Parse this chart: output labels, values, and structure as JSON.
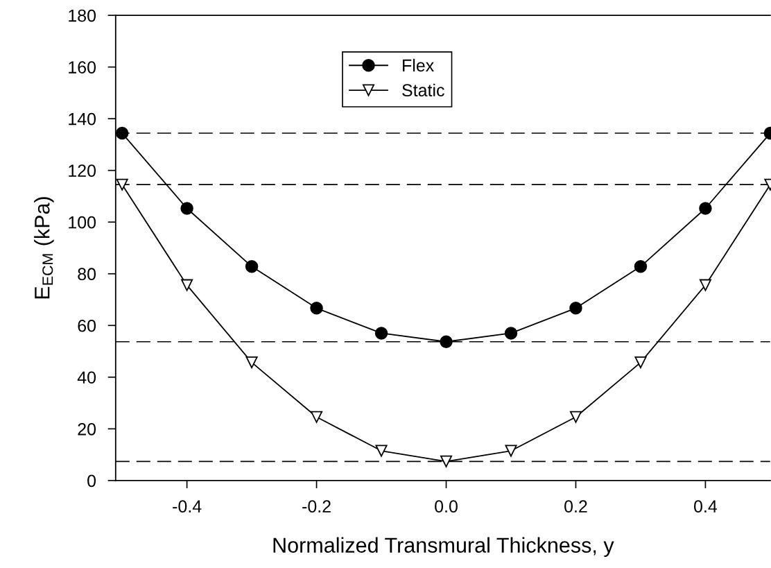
{
  "chart_data": {
    "type": "line",
    "xlabel": "Normalized Transmural Thickness, y",
    "ylabel": "E$_{ECM}$ (kPa)",
    "x": [
      -0.5,
      -0.4,
      -0.3,
      -0.2,
      -0.1,
      0.0,
      0.1,
      0.2,
      0.3,
      0.4,
      0.5
    ],
    "series": [
      {
        "name": "Flex",
        "color": "#000000",
        "marker": "circle",
        "values": [
          134.4,
          105.3,
          82.8,
          66.7,
          57.0,
          53.7,
          57.0,
          66.7,
          82.8,
          105.3,
          134.4
        ]
      },
      {
        "name": "Static",
        "color": "#000000",
        "marker": "triangle",
        "values": [
          114.5,
          75.6,
          45.7,
          24.6,
          11.5,
          7.4,
          11.5,
          24.6,
          45.7,
          75.6,
          114.5
        ]
      }
    ],
    "ref_lines": [
      {
        "axis": "y",
        "value": 134.4,
        "line_style": "dashed",
        "color": "#000000"
      },
      {
        "axis": "y",
        "value": 114.5,
        "line_style": "dashed",
        "color": "#000000"
      },
      {
        "axis": "y",
        "value": 53.7,
        "line_style": "dashed",
        "color": "#000000"
      },
      {
        "axis": "y",
        "value": 7.4,
        "line_style": "dashed",
        "color": "#000000"
      }
    ],
    "xlim": [
      -0.51,
      0.5
    ],
    "ylim": [
      0,
      180
    ],
    "xticks": [
      {
        "value": -0.4,
        "label": "-0.4"
      },
      {
        "value": -0.2,
        "label": "-0.2"
      },
      {
        "value": 0.0,
        "label": "0.0"
      },
      {
        "value": 0.2,
        "label": "0.2"
      },
      {
        "value": 0.4,
        "label": "0.4"
      }
    ],
    "yticks": [
      0,
      20,
      40,
      60,
      80,
      100,
      120,
      140,
      160,
      180
    ],
    "grid": false,
    "legend": "top",
    "line_style": "solid"
  }
}
